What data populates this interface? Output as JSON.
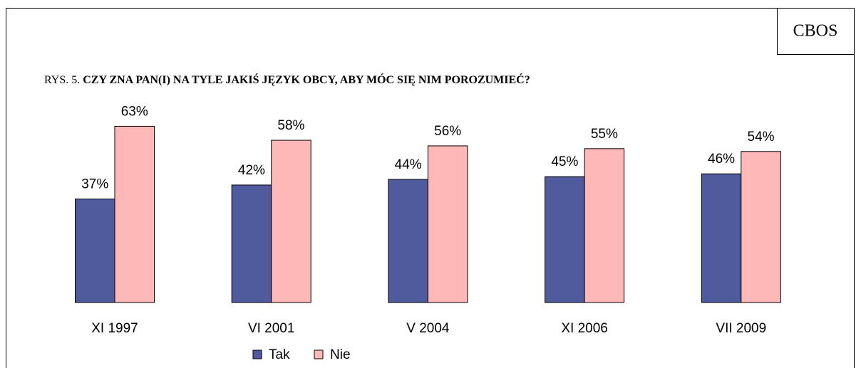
{
  "source": "CBOS",
  "chart_data": {
    "type": "bar",
    "figure_label": "RYS. 5.",
    "title": "CZY ZNA PAN(I) NA TYLE JAKIŚ JĘZYK OBCY, ABY  MÓC SIĘ NIM POROZUMIEĆ?",
    "categories": [
      "XI 1997",
      "VI 2001",
      "V 2004",
      "XI 2006",
      "VII 2009"
    ],
    "series": [
      {
        "name": "Tak",
        "color": "#4f5b9c",
        "values": [
          37,
          42,
          44,
          45,
          46
        ],
        "value_labels": [
          "37%",
          "42%",
          "44%",
          "45%",
          "46%"
        ]
      },
      {
        "name": "Nie",
        "color": "#ffb8b8",
        "values": [
          63,
          58,
          56,
          55,
          54
        ],
        "value_labels": [
          "63%",
          "58%",
          "56%",
          "55%",
          "54%"
        ]
      }
    ],
    "legend": "bottom"
  }
}
